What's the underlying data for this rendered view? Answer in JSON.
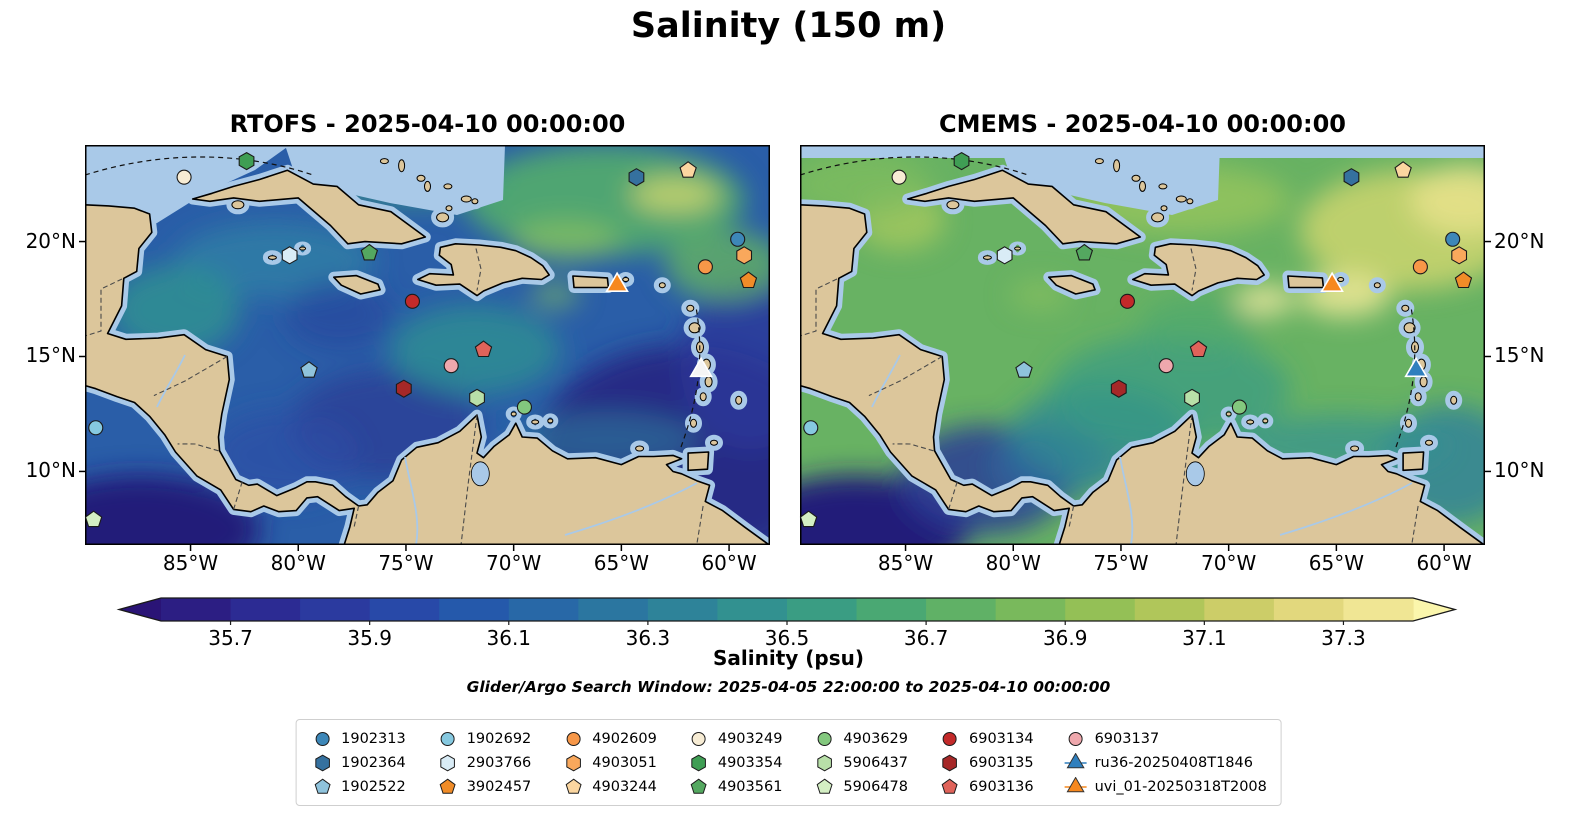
{
  "title": "Salinity (150 m)",
  "search_window": "Glider/Argo Search Window: 2025-04-05 22:00:00 to 2025-04-10 00:00:00",
  "chart_data": {
    "type": "heatmap",
    "figure_title": "Salinity (150 m)",
    "description": "Two-panel filled-contour map of salinity at 150 m over the Caribbean Sea comparing RTOFS and CMEMS models, with Argo float and glider positions overlaid",
    "panels": [
      {
        "name": "rtofs",
        "title": "RTOFS - 2025-04-10 00:00:00",
        "y_label_side": "left"
      },
      {
        "name": "cmems",
        "title": "CMEMS - 2025-04-10 00:00:00",
        "y_label_side": "right"
      }
    ],
    "axes": {
      "lon_range": [
        -89.9,
        -58.1
      ],
      "lat_range": [
        6.8,
        24.2
      ],
      "lon_ticks": [
        {
          "value": -85,
          "label": "85°W"
        },
        {
          "value": -80,
          "label": "80°W"
        },
        {
          "value": -75,
          "label": "75°W"
        },
        {
          "value": -70,
          "label": "70°W"
        },
        {
          "value": -65,
          "label": "65°W"
        },
        {
          "value": -60,
          "label": "60°W"
        }
      ],
      "lat_ticks": [
        {
          "value": 20,
          "label": "20°N"
        },
        {
          "value": 15,
          "label": "15°N"
        },
        {
          "value": 10,
          "label": "10°N"
        }
      ]
    },
    "colorbar": {
      "label": "Salinity (psu)",
      "vmin": 35.6,
      "vmax": 37.4,
      "step": 0.1,
      "extend": "both",
      "ticks": [
        35.7,
        35.9,
        36.1,
        36.3,
        36.5,
        36.7,
        36.9,
        37.1,
        37.3
      ],
      "under_color": "#2a1476",
      "over_color": "#fbf6ac",
      "segment_colors": [
        "#2c1e83",
        "#2c2b93",
        "#2b3a9f",
        "#2849a8",
        "#2559ab",
        "#2868a7",
        "#2b76a0",
        "#2e8399",
        "#329190",
        "#3a9d83",
        "#4aa873",
        "#60b166",
        "#79b95c",
        "#94c056",
        "#b0c65a",
        "#cccd68",
        "#e2d87d",
        "#f0e694"
      ]
    },
    "markers": [
      {
        "id": "1902313",
        "type": "argo",
        "shape": "circle",
        "color": "#3d87b8",
        "lon": -59.6,
        "lat": 20.1
      },
      {
        "id": "1902364",
        "type": "argo",
        "shape": "hexagon",
        "color": "#35719f",
        "lon": -64.3,
        "lat": 22.8
      },
      {
        "id": "1902522",
        "type": "argo",
        "shape": "pentagon",
        "color": "#8fc3dc",
        "lon": -79.5,
        "lat": 14.4
      },
      {
        "id": "1902692",
        "type": "argo",
        "shape": "circle",
        "color": "#86c9e0",
        "lon": -89.4,
        "lat": 11.9
      },
      {
        "id": "2903766",
        "type": "argo",
        "shape": "hexagon",
        "color": "#d9ecf6",
        "lon": -80.4,
        "lat": 19.4
      },
      {
        "id": "3902457",
        "type": "argo",
        "shape": "pentagon",
        "color": "#f08c28",
        "lon": -59.1,
        "lat": 18.3
      },
      {
        "id": "4902609",
        "type": "argo",
        "shape": "circle",
        "color": "#f79748",
        "lon": -61.1,
        "lat": 18.9
      },
      {
        "id": "4903051",
        "type": "argo",
        "shape": "hexagon",
        "color": "#f9a85c",
        "lon": -59.3,
        "lat": 19.4
      },
      {
        "id": "4903244",
        "type": "argo",
        "shape": "pentagon",
        "color": "#fbd6a0",
        "lon": -61.9,
        "lat": 23.1
      },
      {
        "id": "4903249",
        "type": "argo",
        "shape": "circle",
        "color": "#f7ecd4",
        "lon": -85.3,
        "lat": 22.8
      },
      {
        "id": "4903354",
        "type": "argo",
        "shape": "hexagon",
        "color": "#3f9e54",
        "lon": -82.4,
        "lat": 23.5
      },
      {
        "id": "4903561",
        "type": "argo",
        "shape": "pentagon",
        "color": "#54a860",
        "lon": -76.7,
        "lat": 19.5
      },
      {
        "id": "4903629",
        "type": "argo",
        "shape": "circle",
        "color": "#83c87e",
        "lon": -69.5,
        "lat": 12.8
      },
      {
        "id": "5906437",
        "type": "argo",
        "shape": "hexagon",
        "color": "#b8e0a8",
        "lon": -71.7,
        "lat": 13.2
      },
      {
        "id": "5906478",
        "type": "argo",
        "shape": "pentagon",
        "color": "#d4efc4",
        "lon": -89.5,
        "lat": 7.9
      },
      {
        "id": "6903134",
        "type": "argo",
        "shape": "circle",
        "color": "#c32a2a",
        "lon": -74.7,
        "lat": 17.4
      },
      {
        "id": "6903135",
        "type": "argo",
        "shape": "hexagon",
        "color": "#a62828",
        "lon": -75.1,
        "lat": 13.6
      },
      {
        "id": "6903136",
        "type": "argo",
        "shape": "pentagon",
        "color": "#e0635a",
        "lon": -71.4,
        "lat": 15.3
      },
      {
        "id": "6903137",
        "type": "argo",
        "shape": "circle",
        "color": "#efa8ad",
        "lon": -72.9,
        "lat": 14.6
      },
      {
        "id": "ru36-20250408T1846",
        "type": "glider",
        "shape": "triangle",
        "color": "#2f7fbe",
        "panel_colors": {
          "rtofs": "#f5f5f5"
        },
        "lon": -61.3,
        "lat": 14.4
      },
      {
        "id": "uvi_01-20250318T2008",
        "type": "glider",
        "shape": "triangle",
        "color": "#f6881f",
        "lon": -65.2,
        "lat": 18.1
      }
    ],
    "field_summary": {
      "rtofs": "Mostly 36.0-36.4 psu (blues/teals); very low 35.6-35.8 region in the southeast Atlantic corner and Pacific; greens/yellows 36.6-37.1 in the northeast",
      "cmems": "Mostly 36.7-36.9 psu (greens); 37.0-37.3 yellow patches northeast and near Puerto Rico; darker 36.2-36.4 teal in central/southwest Caribbean and Pacific"
    }
  }
}
